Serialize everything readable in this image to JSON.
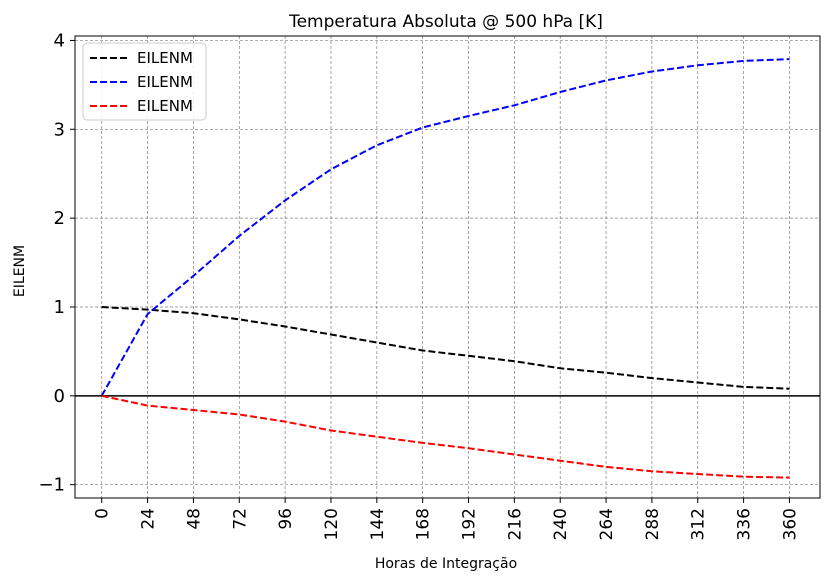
{
  "chart_data": {
    "type": "line",
    "title": "Temperatura Absoluta @ 500 hPa [K]",
    "xlabel": "Horas de Integração",
    "ylabel": "EILENM",
    "x": [
      0,
      24,
      48,
      72,
      96,
      120,
      144,
      168,
      192,
      216,
      240,
      264,
      288,
      312,
      336,
      360
    ],
    "xticks": [
      "0",
      "24",
      "48",
      "72",
      "96",
      "120",
      "144",
      "168",
      "192",
      "216",
      "240",
      "264",
      "288",
      "312",
      "336",
      "360"
    ],
    "yticks": [
      "−1",
      "0",
      "1",
      "2",
      "3",
      "4"
    ],
    "yticks_values": [
      -1,
      0,
      1,
      2,
      3,
      4
    ],
    "xlim": [
      -14,
      376
    ],
    "ylim": [
      -1.15,
      4.05
    ],
    "grid": true,
    "legend_position": "top-left",
    "series": [
      {
        "name": "EILENM",
        "color": "#000000",
        "values": [
          1.0,
          0.97,
          0.93,
          0.86,
          0.78,
          0.69,
          0.6,
          0.51,
          0.45,
          0.39,
          0.31,
          0.26,
          0.2,
          0.15,
          0.1,
          0.08
        ]
      },
      {
        "name": "EILENM",
        "color": "#0000ff",
        "values": [
          0.0,
          0.92,
          1.35,
          1.8,
          2.2,
          2.55,
          2.82,
          3.02,
          3.15,
          3.27,
          3.42,
          3.55,
          3.65,
          3.72,
          3.77,
          3.79
        ]
      },
      {
        "name": "EILENM",
        "color": "#ff0000",
        "values": [
          0.0,
          -0.11,
          -0.16,
          -0.21,
          -0.29,
          -0.39,
          -0.46,
          -0.53,
          -0.59,
          -0.66,
          -0.73,
          -0.8,
          -0.85,
          -0.88,
          -0.91,
          -0.92
        ]
      }
    ]
  }
}
